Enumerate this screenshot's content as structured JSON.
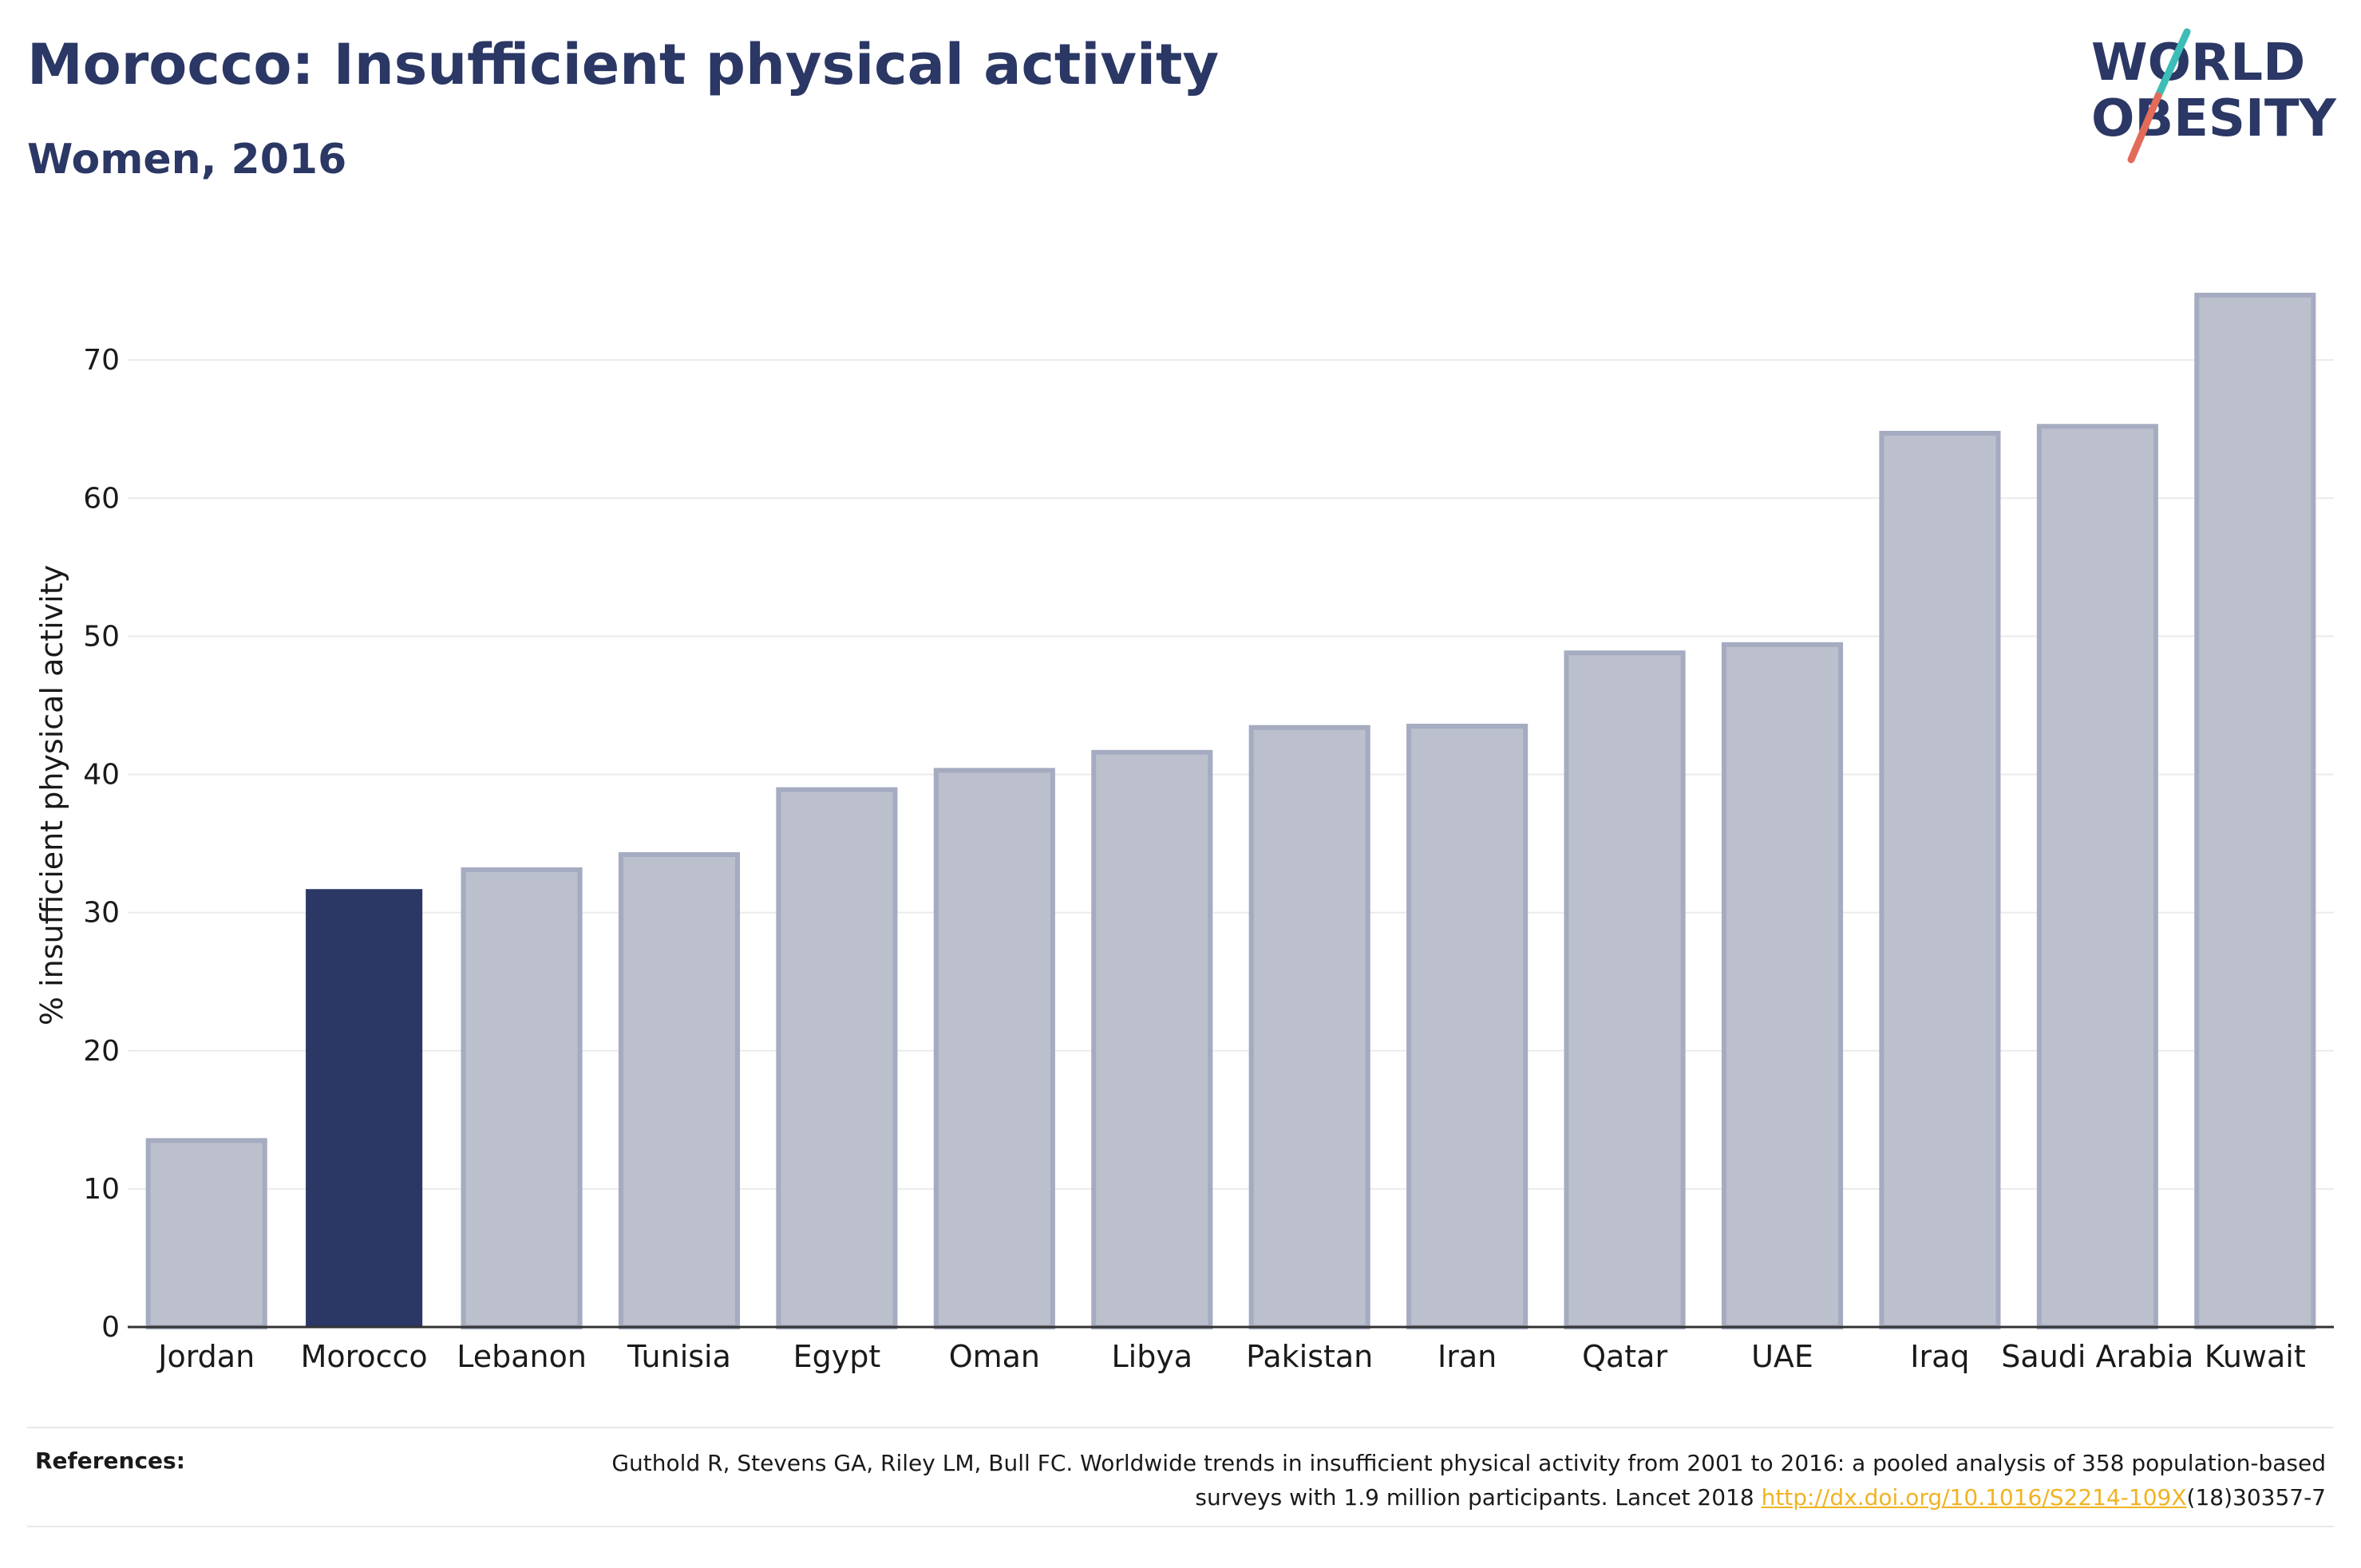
{
  "title": "Morocco: Insufficient physical activity",
  "subtitle": "Women, 2016",
  "logo": {
    "line1": "WORLD",
    "line2": "OBESITY",
    "colors": {
      "text": "#2b3764",
      "slash_teal": "#3dbdb7",
      "slash_red": "#e36b5a"
    }
  },
  "colors": {
    "highlight": "#2b3764",
    "bar_fill": "#bcc0cd",
    "bar_edge": "#a5abc0",
    "grid": "#ebebeb",
    "axis": "#333333"
  },
  "chart_data": {
    "type": "bar",
    "categories": [
      "Jordan",
      "Morocco",
      "Lebanon",
      "Tunisia",
      "Egypt",
      "Oman",
      "Libya",
      "Pakistan",
      "Iran",
      "Qatar",
      "UAE",
      "Iraq",
      "Saudi Arabia",
      "Kuwait"
    ],
    "values": [
      13.5,
      31.7,
      33.1,
      34.2,
      38.9,
      40.3,
      41.6,
      43.4,
      43.5,
      48.8,
      49.4,
      64.7,
      65.2,
      74.7
    ],
    "highlight": "Morocco",
    "ylabel": "% insufficient physical activity",
    "ylim": [
      0,
      77
    ],
    "yticks": [
      0,
      10,
      20,
      30,
      40,
      50,
      60,
      70
    ],
    "grid": true
  },
  "references": {
    "label": "References:",
    "text_before": "Guthold R, Stevens GA, Riley LM, Bull FC. Worldwide trends in insufficient physical activity from 2001 to 2016: a pooled analysis of 358 population-based surveys with 1.9 million participants. Lancet 2018 ",
    "link": "http://dx.doi.org/10.1016/S2214-109X",
    "text_after": "(18)30357-7"
  }
}
